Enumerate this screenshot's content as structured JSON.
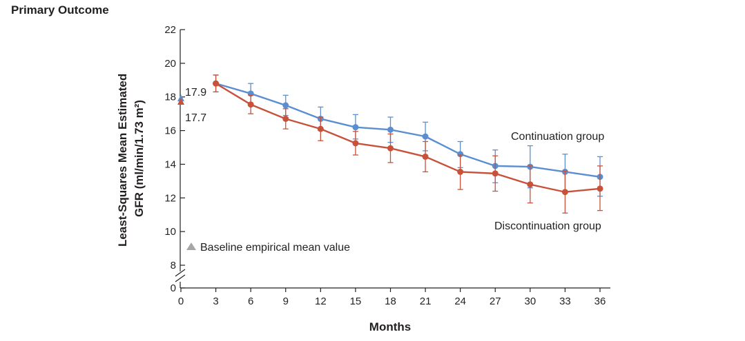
{
  "colors": {
    "continuation": "#5b8ed0",
    "discontinuation": "#c8513a",
    "baseline_marker": "#a6a6a6",
    "axis": "#231f20"
  },
  "chart_data": {
    "type": "line",
    "title": "Primary Outcome",
    "xlabel": "Months",
    "ylabel": "Least-Squares Mean Estimated GFR (ml/min/1.73 m²)",
    "xlim": [
      0,
      36
    ],
    "ylim": [
      8,
      22
    ],
    "y_axis_break": true,
    "x_ticks": [
      0,
      3,
      6,
      9,
      12,
      15,
      18,
      21,
      24,
      27,
      30,
      33,
      36
    ],
    "y_ticks": [
      0,
      8,
      10,
      12,
      14,
      16,
      18,
      20,
      22
    ],
    "grid": false,
    "series": [
      {
        "name": "Continuation group",
        "color_key": "continuation",
        "x": [
          3,
          6,
          9,
          12,
          15,
          18,
          21,
          24,
          27,
          30,
          33,
          36
        ],
        "y": [
          18.8,
          18.2,
          17.5,
          16.7,
          16.2,
          16.05,
          15.65,
          14.6,
          13.9,
          13.85,
          13.55,
          13.25
        ],
        "err_low": [
          18.3,
          17.6,
          16.9,
          16.0,
          15.5,
          15.3,
          14.8,
          13.8,
          12.9,
          12.6,
          12.4,
          12.1
        ],
        "err_high": [
          19.3,
          18.8,
          18.1,
          17.4,
          16.95,
          16.8,
          16.5,
          15.35,
          14.85,
          15.1,
          14.6,
          14.45
        ]
      },
      {
        "name": "Discontinuation group",
        "color_key": "discontinuation",
        "x": [
          3,
          6,
          9,
          12,
          15,
          18,
          21,
          24,
          27,
          30,
          33,
          36
        ],
        "y": [
          18.8,
          17.55,
          16.7,
          16.1,
          15.25,
          14.95,
          14.45,
          13.55,
          13.45,
          12.8,
          12.35,
          12.55
        ],
        "err_low": [
          18.3,
          17.0,
          16.1,
          15.4,
          14.55,
          14.1,
          13.55,
          12.5,
          12.4,
          11.7,
          11.1,
          11.25
        ],
        "err_high": [
          19.3,
          18.1,
          17.3,
          16.8,
          15.95,
          15.8,
          15.35,
          14.55,
          14.5,
          13.9,
          13.6,
          13.9
        ]
      }
    ],
    "baseline": {
      "legend_label": "Baseline empirical mean value",
      "x": 0,
      "continuation_value": 17.9,
      "discontinuation_value": 17.7,
      "continuation_label": "17.9",
      "discontinuation_label": "17.7"
    },
    "annotations": {
      "continuation_label": "Continuation group",
      "discontinuation_label": "Discontinuation group"
    }
  }
}
